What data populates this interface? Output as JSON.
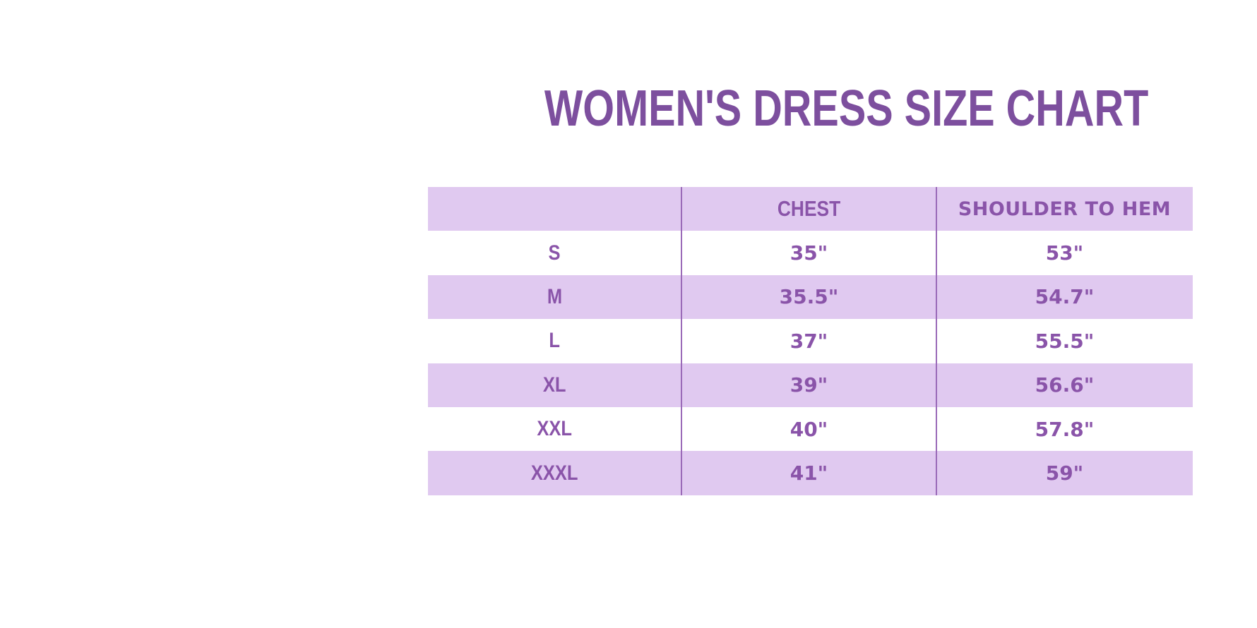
{
  "title": "WOMEN'S DRESS SIZE CHART",
  "colors": {
    "title_text": "#7d4f9e",
    "table_text": "#8a54a9",
    "row_lavender": "#e0c9f0",
    "row_white": "#ffffff",
    "column_divider": "#9a6ab8",
    "background": "#ffffff"
  },
  "table": {
    "columns": [
      "",
      "CHEST",
      "SHOULDER TO HEM"
    ],
    "rows": [
      {
        "size": "S",
        "chest": "35\"",
        "shoulder_to_hem": "53\""
      },
      {
        "size": "M",
        "chest": "35.5\"",
        "shoulder_to_hem": "54.7\""
      },
      {
        "size": "L",
        "chest": "37\"",
        "shoulder_to_hem": "55.5\""
      },
      {
        "size": "XL",
        "chest": "39\"",
        "shoulder_to_hem": "56.6\""
      },
      {
        "size": "XXL",
        "chest": "40\"",
        "shoulder_to_hem": "57.8\""
      },
      {
        "size": "XXXL",
        "chest": "41\"",
        "shoulder_to_hem": "59\""
      }
    ]
  },
  "chart_data": {
    "type": "table",
    "title": "WOMEN'S DRESS SIZE CHART",
    "columns": [
      "",
      "CHEST",
      "SHOULDER TO HEM"
    ],
    "rows": [
      [
        "S",
        "35\"",
        "53\""
      ],
      [
        "M",
        "35.5\"",
        "54.7\""
      ],
      [
        "L",
        "37\"",
        "55.5\""
      ],
      [
        "XL",
        "39\"",
        "56.6\""
      ],
      [
        "XXL",
        "40\"",
        "57.8\""
      ],
      [
        "XXXL",
        "41\"",
        "59\""
      ]
    ],
    "layout": {
      "header_background": "#e0c9f0",
      "alternating_rows": true,
      "column_dividers": true,
      "units": "inches"
    }
  }
}
